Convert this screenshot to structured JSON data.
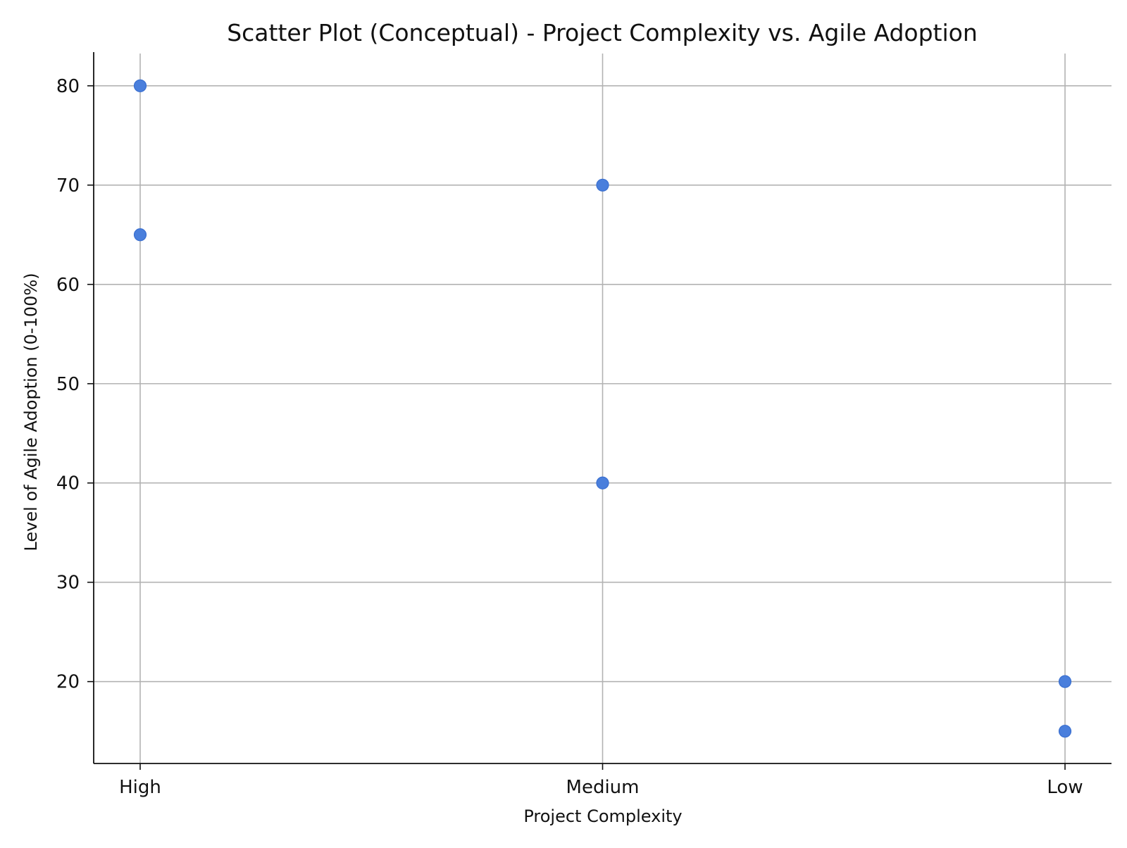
{
  "chart_data": {
    "type": "scatter",
    "title": "Scatter Plot (Conceptual) - Project Complexity vs. Agile Adoption",
    "xlabel": "Project Complexity",
    "ylabel": "Level of Agile Adoption (0-100%)",
    "categories": [
      "High",
      "Medium",
      "Low"
    ],
    "points": [
      {
        "x": "High",
        "y": 80
      },
      {
        "x": "High",
        "y": 65
      },
      {
        "x": "Medium",
        "y": 70
      },
      {
        "x": "Medium",
        "y": 40
      },
      {
        "x": "Low",
        "y": 20
      },
      {
        "x": "Low",
        "y": 15
      }
    ],
    "yticks": [
      "20",
      "30",
      "40",
      "50",
      "60",
      "70",
      "80"
    ],
    "ylim": [
      11.75,
      83.25
    ],
    "grid": true,
    "legend": "none",
    "colors": {
      "point": "#4a7fdc",
      "grid": "#b3b3b3",
      "axis": "#111111"
    }
  }
}
